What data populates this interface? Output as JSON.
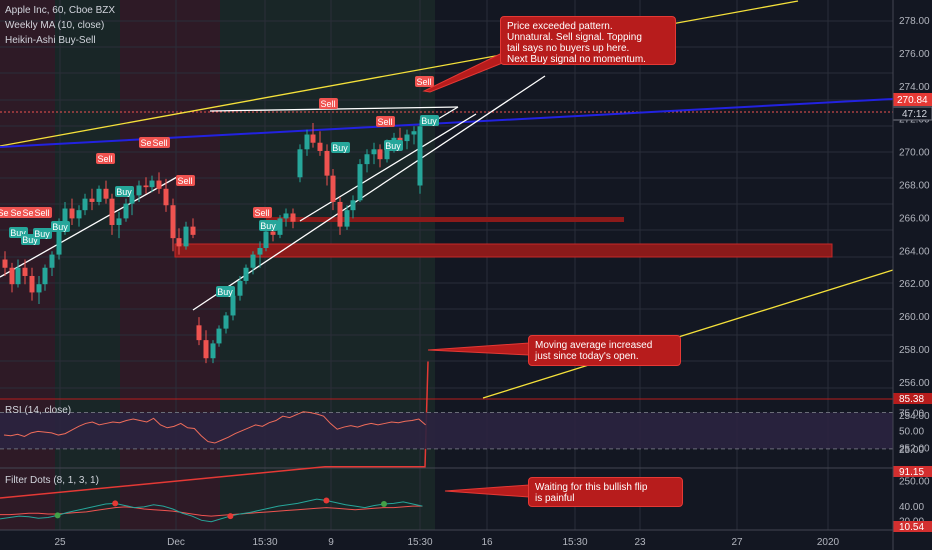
{
  "legend": {
    "symbol": "Apple Inc, 60, Cboe BZX",
    "ma": "Weekly MA (10, close)",
    "ha": "Heikin-Ashi Buy-Sell",
    "rsi": "RSI (14, close)",
    "dots": "Filter Dots (8, 1, 3, 1)"
  },
  "notes": {
    "top": "Price exceeded pattern.\nUnnatural. Sell signal. Topping\ntail says no buyers up here.\nNext Buy signal no momentum.",
    "mid": "Moving average increased\njust since today's open.",
    "bottom": "Waiting for this bullish flip\nis painful"
  },
  "price_axis": {
    "ticks": [
      "278.00",
      "276.00",
      "274.00",
      "272.00",
      "270.00",
      "268.00",
      "266.00",
      "264.00",
      "262.00",
      "260.00",
      "258.00",
      "256.00",
      "254.00",
      "252.00",
      "250.00"
    ],
    "last_price": "270.84",
    "countdown": "47:12"
  },
  "rsi_axis": {
    "ticks": [
      "75.00",
      "50.00",
      "25.00"
    ],
    "top_label": "85.38"
  },
  "dots_axis": {
    "ticks": [
      "40.00",
      "20.00"
    ],
    "top_label": "91.15",
    "bottom_label": "10.54"
  },
  "time_axis": [
    "25",
    "Dec",
    "15:30",
    "9",
    "15:30",
    "16",
    "15:30",
    "23",
    "27",
    "2020"
  ],
  "colors": {
    "bg": "#131722",
    "up": "#26a69a",
    "down": "#ef5350",
    "blue": "#1e22d8",
    "yellow": "#f5e13a",
    "red": "#d32f2f"
  },
  "chart_data": {
    "type": "candlestick",
    "ylim": [
      249,
      280
    ],
    "candles": [
      [
        263.5,
        264,
        262.5,
        263
      ],
      [
        263,
        263.3,
        261.5,
        262
      ],
      [
        262,
        263.5,
        261.8,
        263
      ],
      [
        263,
        263.5,
        262,
        262.5
      ],
      [
        262.5,
        263,
        261,
        261.5
      ],
      [
        261.5,
        262.5,
        260.8,
        262
      ],
      [
        262,
        263.2,
        261.6,
        263
      ],
      [
        263,
        264,
        262.5,
        263.8
      ],
      [
        263.8,
        266,
        263.5,
        265.5
      ],
      [
        265.5,
        267,
        265,
        266.6
      ],
      [
        266.6,
        267.2,
        265.6,
        266
      ],
      [
        266,
        266.8,
        265.5,
        266.5
      ],
      [
        266.5,
        267.5,
        266.2,
        267.2
      ],
      [
        267.2,
        267.8,
        266.5,
        267
      ],
      [
        267,
        268,
        266.8,
        267.8
      ],
      [
        267.8,
        268.3,
        266.9,
        267.2
      ],
      [
        267.2,
        267.5,
        265,
        265.6
      ],
      [
        265.6,
        266.4,
        264.8,
        266
      ],
      [
        266,
        267.2,
        265.8,
        266.9
      ],
      [
        266.9,
        267.6,
        266.2,
        267.4
      ],
      [
        267.4,
        268.3,
        267,
        268
      ],
      [
        268,
        268.5,
        267.5,
        267.9
      ],
      [
        267.9,
        268.6,
        267.6,
        268.3
      ],
      [
        268.3,
        268.8,
        267.5,
        267.8
      ],
      [
        267.8,
        268.4,
        266.4,
        266.8
      ],
      [
        266.8,
        267.2,
        264,
        264.8
      ],
      [
        264.8,
        265.4,
        263.8,
        264.3
      ],
      [
        264.3,
        265.8,
        264.1,
        265.5
      ],
      [
        265.5,
        266,
        264.8,
        265
      ],
      [
        259.5,
        260,
        258.3,
        258.6
      ],
      [
        258.6,
        259.2,
        257.2,
        257.5
      ],
      [
        257.5,
        258.6,
        257.2,
        258.4
      ],
      [
        258.4,
        259.5,
        258.2,
        259.3
      ],
      [
        259.3,
        260.3,
        259,
        260.1
      ],
      [
        260.1,
        261.5,
        259.8,
        261.3
      ],
      [
        261.3,
        262.5,
        261,
        262.2
      ],
      [
        262.2,
        263.2,
        262,
        263
      ],
      [
        263,
        264,
        262.6,
        263.8
      ],
      [
        263.8,
        264.6,
        263,
        264.2
      ],
      [
        264.2,
        265.5,
        264,
        265.2
      ],
      [
        265.2,
        265.8,
        264.6,
        265
      ],
      [
        265,
        266.2,
        264.8,
        266
      ],
      [
        266,
        266.6,
        265.5,
        266.3
      ],
      [
        266.3,
        266.6,
        265.4,
        265.8
      ],
      [
        268.5,
        270.5,
        268.2,
        270.2
      ],
      [
        270.2,
        271.4,
        269.8,
        271.1
      ],
      [
        271.1,
        271.8,
        270.3,
        270.6
      ],
      [
        270.6,
        271.3,
        269.8,
        270.1
      ],
      [
        270.1,
        270.5,
        268,
        268.6
      ],
      [
        268.6,
        269,
        266.5,
        267
      ],
      [
        267,
        267.3,
        265,
        265.5
      ],
      [
        265.5,
        266.8,
        265.3,
        266.5
      ],
      [
        266.5,
        267.4,
        266,
        267.1
      ],
      [
        267.1,
        269.6,
        267,
        269.3
      ],
      [
        269.3,
        270.2,
        268.8,
        269.9
      ],
      [
        269.9,
        270.6,
        269.3,
        270.2
      ],
      [
        270.2,
        270.5,
        269.1,
        269.6
      ],
      [
        269.6,
        270.8,
        269.4,
        270.5
      ],
      [
        270.5,
        271.2,
        270,
        270.9
      ],
      [
        270.9,
        271.5,
        270.3,
        270.7
      ],
      [
        270.7,
        271.4,
        270.2,
        271.1
      ],
      [
        271.1,
        271.6,
        270.5,
        271.3
      ],
      [
        268,
        272,
        267.5,
        271.6
      ]
    ],
    "weekly_ma": [
      [
        0,
        249
      ],
      [
        325,
        250.9
      ],
      [
        425,
        250.9
      ],
      [
        428,
        257.3
      ]
    ],
    "rsi": [
      44,
      43,
      45,
      42,
      47,
      49,
      48,
      47,
      44,
      46,
      51,
      56,
      60,
      62,
      58,
      60,
      62,
      61,
      64,
      66,
      64,
      62,
      67,
      58,
      54,
      56,
      60,
      54,
      53,
      43,
      35,
      33,
      37,
      41,
      46,
      50,
      54,
      58,
      56,
      61,
      64,
      70,
      68,
      72,
      76,
      75,
      73,
      70,
      60,
      52,
      55,
      57,
      55,
      58,
      60,
      58,
      60,
      62,
      61,
      63,
      64,
      66,
      58
    ],
    "dots_fast": [
      22,
      24,
      26,
      25,
      23,
      24,
      27,
      31,
      34,
      37,
      40,
      43,
      44,
      41,
      38,
      39,
      42,
      40,
      36,
      30,
      26,
      20,
      18,
      22,
      26,
      29,
      31,
      34,
      37,
      40,
      42,
      44,
      47,
      50,
      48,
      45,
      42,
      40,
      38,
      41,
      43,
      44,
      46,
      43,
      40
    ],
    "dots_slow": [
      28,
      28,
      29,
      30,
      30,
      29,
      29,
      30,
      31,
      32,
      34,
      36,
      38,
      39,
      38,
      36,
      35,
      34,
      33,
      31,
      29,
      27,
      26,
      27,
      28,
      29,
      30,
      31,
      32,
      33,
      34,
      35,
      36,
      37,
      38,
      37,
      36,
      35,
      36,
      37,
      38,
      38,
      39,
      40,
      40
    ]
  }
}
